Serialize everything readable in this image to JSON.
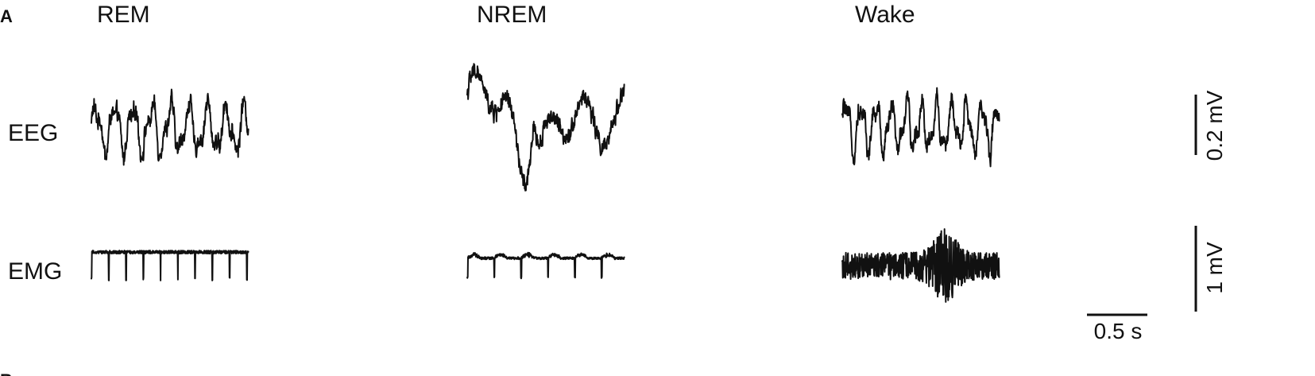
{
  "panel": {
    "letter": "A",
    "next_letter_partial": "B"
  },
  "chart_data": {
    "type": "line",
    "states": [
      "REM",
      "NREM",
      "Wake"
    ],
    "rows": [
      "EEG",
      "EMG"
    ],
    "scale_bars": {
      "eeg": {
        "value": 0.2,
        "unit": "mV",
        "label": "0.2 mV"
      },
      "emg": {
        "value": 1,
        "unit": "mV",
        "label": "1 mV"
      },
      "time": {
        "value": 0.5,
        "unit": "s",
        "label": "0.5 s"
      }
    },
    "segment_duration_s": 1.3,
    "series": [
      {
        "row": "EEG",
        "state": "REM",
        "dominant_freq_hz": 6.5,
        "peak_to_peak_mV": 0.25
      },
      {
        "row": "EEG",
        "state": "NREM",
        "dominant_freq_hz": 1.5,
        "peak_to_peak_mV": 0.42
      },
      {
        "row": "EEG",
        "state": "Wake",
        "dominant_freq_hz": 8.0,
        "peak_to_peak_mV": 0.26
      },
      {
        "row": "EMG",
        "state": "REM",
        "spike_rate_hz": 7.0,
        "peak_to_peak_mV": 0.35
      },
      {
        "row": "EMG",
        "state": "NREM",
        "spike_rate_hz": 4.5,
        "peak_to_peak_mV": 0.3
      },
      {
        "row": "EMG",
        "state": "Wake",
        "spike_rate_hz": 0,
        "peak_to_peak_mV": 0.85
      }
    ],
    "grid": false,
    "legend": "none"
  }
}
